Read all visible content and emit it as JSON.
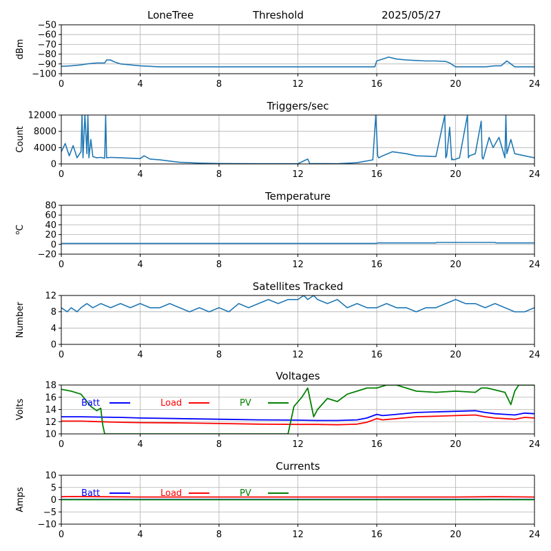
{
  "header": {
    "site": "LoneTree",
    "mode": "Threshold",
    "date": "2025/05/27"
  },
  "chart_data": [
    {
      "type": "line",
      "title": "",
      "ylabel": "dBm",
      "xlim": [
        0,
        24
      ],
      "ylim": [
        -100,
        -50
      ],
      "xticks": [
        0,
        4,
        8,
        12,
        16,
        20,
        24
      ],
      "yticks": [
        -100,
        -90,
        -80,
        -70,
        -60,
        -50
      ],
      "grid": true,
      "series": [
        {
          "color": "#1f77b4",
          "x": [
            0,
            0.5,
            1,
            1.3,
            1.8,
            2.2,
            2.3,
            2.5,
            2.7,
            3.0,
            3.5,
            4.0,
            4.5,
            5.0,
            6,
            8,
            10,
            12,
            14,
            15,
            15.9,
            16.0,
            16.3,
            16.6,
            17,
            17.5,
            18,
            18.5,
            19,
            19.5,
            19.7,
            20.0,
            20.5,
            21,
            21.5,
            22.0,
            22.3,
            22.6,
            22.8,
            23.0,
            23.5,
            24
          ],
          "y": [
            -92.5,
            -92,
            -91,
            -90,
            -89,
            -89,
            -86,
            -86,
            -88,
            -90,
            -91,
            -92,
            -92.5,
            -93,
            -93,
            -93,
            -93,
            -93,
            -93,
            -93,
            -93,
            -87,
            -85,
            -83,
            -85,
            -86,
            -86.5,
            -87,
            -87,
            -87.5,
            -89,
            -93,
            -93,
            -93,
            -93,
            -92,
            -92,
            -87,
            -90,
            -93,
            -93,
            -93
          ]
        }
      ]
    },
    {
      "type": "line",
      "title": "Triggers/sec",
      "ylabel": "Count",
      "xlim": [
        0,
        24
      ],
      "ylim": [
        0,
        12000
      ],
      "xticks": [
        0,
        4,
        8,
        12,
        16,
        20,
        24
      ],
      "yticks": [
        0,
        4000,
        8000,
        12000
      ],
      "grid": true,
      "series": [
        {
          "color": "#1f77b4",
          "x": [
            0,
            0.2,
            0.4,
            0.6,
            0.8,
            1.0,
            1.05,
            1.1,
            1.2,
            1.3,
            1.35,
            1.4,
            1.5,
            1.6,
            1.8,
            2.0,
            2.2,
            2.25,
            2.3,
            2.5,
            3.0,
            3.5,
            4.0,
            4.2,
            4.5,
            5.0,
            6,
            7,
            8,
            10,
            12,
            12.5,
            12.6,
            14,
            15,
            15.8,
            15.95,
            16.05,
            16.1,
            16.3,
            16.8,
            17.5,
            18,
            19,
            19.45,
            19.5,
            19.55,
            19.7,
            19.8,
            19.85,
            19.9,
            20.2,
            20.6,
            20.65,
            20.7,
            21,
            21.3,
            21.35,
            21.4,
            21.7,
            21.9,
            22.2,
            22.5,
            22.55,
            22.6,
            22.8,
            23,
            23.5,
            24
          ],
          "y": [
            3000,
            5000,
            2000,
            4500,
            1500,
            3000,
            12000,
            1500,
            12000,
            2500,
            12000,
            1500,
            6000,
            1800,
            1500,
            1600,
            1400,
            12000,
            1500,
            1600,
            1500,
            1400,
            1300,
            2000,
            1200,
            1000,
            400,
            200,
            100,
            50,
            50,
            1200,
            100,
            50,
            300,
            1000,
            12000,
            2000,
            1500,
            2000,
            3000,
            2500,
            2000,
            1800,
            12000,
            1500,
            2000,
            9000,
            1000,
            1200,
            1000,
            1500,
            12000,
            1500,
            2000,
            2500,
            10500,
            1500,
            1200,
            6500,
            4000,
            6500,
            1500,
            12000,
            2500,
            6000,
            2500,
            2000,
            1500
          ]
        }
      ]
    },
    {
      "type": "line",
      "title": "Temperature",
      "ylabel": "oC",
      "xlim": [
        0,
        24
      ],
      "ylim": [
        -20,
        80
      ],
      "xticks": [
        0,
        4,
        8,
        12,
        16,
        20,
        24
      ],
      "yticks": [
        -20,
        0,
        20,
        40,
        60,
        80
      ],
      "grid": true,
      "series": [
        {
          "color": "#1f77b4",
          "x": [
            0,
            16,
            16.05,
            19,
            19.05,
            22,
            22.05,
            24
          ],
          "y": [
            2,
            2,
            3,
            3,
            4,
            4,
            3,
            3
          ]
        }
      ]
    },
    {
      "type": "line",
      "title": "Satellites Tracked",
      "ylabel": "Number",
      "xlim": [
        0,
        24
      ],
      "ylim": [
        0,
        12
      ],
      "xticks": [
        0,
        4,
        8,
        12,
        16,
        20,
        24
      ],
      "yticks": [
        0,
        4,
        8,
        12
      ],
      "grid": true,
      "series": [
        {
          "color": "#1f77b4",
          "x": [
            0,
            0.3,
            0.5,
            0.8,
            1.0,
            1.3,
            1.6,
            2.0,
            2.5,
            3.0,
            3.5,
            4.0,
            4.5,
            5.0,
            5.5,
            6.0,
            6.5,
            7.0,
            7.5,
            8.0,
            8.5,
            9.0,
            9.5,
            10.0,
            10.5,
            11.0,
            11.5,
            12.0,
            12.3,
            12.5,
            12.8,
            13.0,
            13.5,
            14.0,
            14.5,
            15.0,
            15.5,
            16.0,
            16.5,
            17.0,
            17.5,
            18.0,
            18.5,
            19.0,
            19.5,
            20.0,
            20.5,
            21.0,
            21.5,
            22.0,
            22.5,
            23.0,
            23.5,
            24
          ],
          "y": [
            9,
            8,
            9,
            8,
            9,
            10,
            9,
            10,
            9,
            10,
            9,
            10,
            9,
            9,
            10,
            9,
            8,
            9,
            8,
            9,
            8,
            10,
            9,
            10,
            11,
            10,
            11,
            11,
            12,
            11,
            12,
            11,
            10,
            11,
            9,
            10,
            9,
            9,
            10,
            9,
            9,
            8,
            9,
            9,
            10,
            11,
            10,
            10,
            9,
            10,
            9,
            8,
            8,
            9
          ]
        }
      ]
    },
    {
      "type": "line",
      "title": "Voltages",
      "ylabel": "Volts",
      "xlim": [
        0,
        24
      ],
      "ylim": [
        10,
        18
      ],
      "xticks": [
        0,
        4,
        8,
        12,
        16,
        20,
        24
      ],
      "yticks": [
        10,
        12,
        14,
        16,
        18
      ],
      "grid": true,
      "legend_position": "top-left",
      "series": [
        {
          "name": "Batt",
          "color": "#0000ff",
          "x": [
            0,
            1,
            2,
            3,
            4,
            6,
            8,
            10,
            12,
            13,
            14,
            15,
            15.5,
            16,
            16.3,
            17,
            18,
            19,
            20,
            21,
            21.5,
            22,
            22.5,
            23,
            23.5,
            24
          ],
          "y": [
            12.8,
            12.8,
            12.75,
            12.7,
            12.6,
            12.5,
            12.4,
            12.3,
            12.25,
            12.2,
            12.2,
            12.3,
            12.6,
            13.2,
            13.0,
            13.2,
            13.5,
            13.6,
            13.7,
            13.8,
            13.5,
            13.3,
            13.2,
            13.1,
            13.4,
            13.3
          ]
        },
        {
          "name": "Load",
          "color": "#ff0000",
          "x": [
            0,
            1,
            2,
            3,
            4,
            6,
            8,
            10,
            12,
            13,
            14,
            15,
            15.5,
            16,
            16.3,
            17,
            18,
            19,
            20,
            21,
            21.5,
            22,
            22.5,
            23,
            23.5,
            24
          ],
          "y": [
            12.1,
            12.1,
            12.0,
            11.9,
            11.85,
            11.8,
            11.7,
            11.6,
            11.55,
            11.55,
            11.5,
            11.6,
            11.9,
            12.5,
            12.3,
            12.5,
            12.8,
            12.9,
            13.0,
            13.1,
            12.8,
            12.6,
            12.5,
            12.4,
            12.7,
            12.6
          ]
        },
        {
          "name": "PV",
          "color": "#008000",
          "x": [
            0,
            0.5,
            1.0,
            1.5,
            1.8,
            2.0,
            2.1,
            2.2,
            11.5,
            11.8,
            12.2,
            12.5,
            12.8,
            13.0,
            13.5,
            14.0,
            14.5,
            15.0,
            15.5,
            16.0,
            16.5,
            17.0,
            17.5,
            18,
            19,
            20,
            21,
            21.3,
            21.6,
            22.0,
            22.5,
            22.8,
            23.0,
            23.2,
            24
          ],
          "y": [
            17.3,
            17.0,
            16.5,
            14.5,
            13.8,
            14.2,
            11.5,
            10.0,
            10.0,
            14.5,
            16.0,
            17.5,
            12.8,
            14.0,
            15.8,
            15.3,
            16.5,
            17.0,
            17.5,
            17.5,
            18.0,
            18.0,
            17.5,
            17.0,
            16.8,
            17.0,
            16.8,
            17.5,
            17.5,
            17.2,
            16.8,
            14.8,
            17.0,
            18.0,
            18.0
          ]
        }
      ]
    },
    {
      "type": "line",
      "title": "Currents",
      "ylabel": "Amps",
      "xlim": [
        0,
        24
      ],
      "ylim": [
        -10,
        10
      ],
      "xticks": [
        0,
        4,
        8,
        12,
        16,
        20,
        24
      ],
      "yticks": [
        -10,
        -5,
        0,
        5,
        10
      ],
      "grid": true,
      "legend_position": "top-left",
      "series": [
        {
          "name": "Batt",
          "color": "#0000ff",
          "x": [
            0,
            24
          ],
          "y": [
            0.1,
            0.1
          ]
        },
        {
          "name": "Load",
          "color": "#ff0000",
          "x": [
            0,
            0.5,
            2,
            4,
            8,
            12,
            16,
            20,
            22,
            24
          ],
          "y": [
            1.2,
            1.3,
            1.2,
            1.1,
            1.1,
            1.1,
            1.1,
            1.1,
            1.2,
            1.1
          ]
        },
        {
          "name": "PV",
          "color": "#008000",
          "x": [
            0,
            24
          ],
          "y": [
            0,
            0
          ]
        }
      ]
    }
  ]
}
